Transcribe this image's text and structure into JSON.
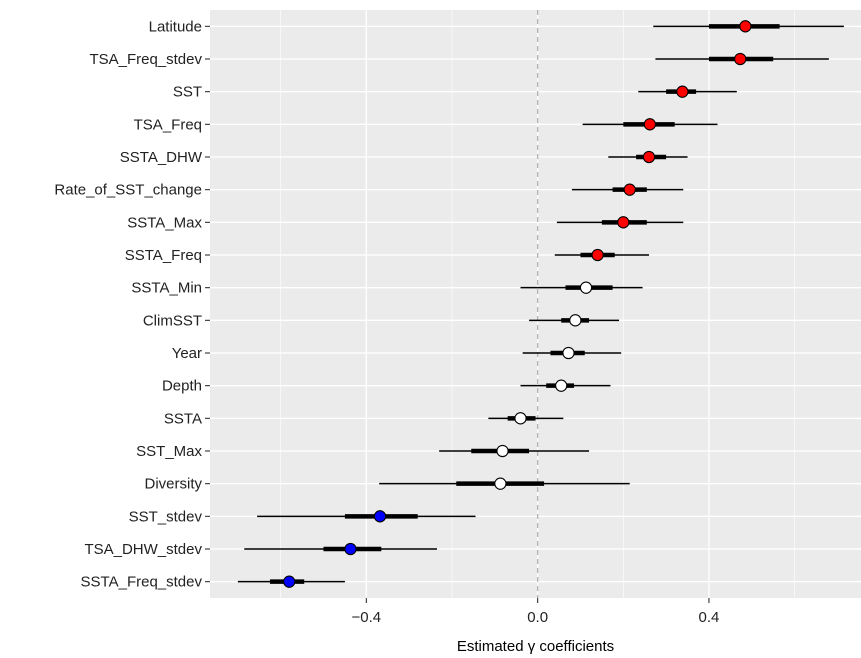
{
  "chart_data": {
    "type": "scatter",
    "subtype": "coefficient-interval-plot",
    "title": "",
    "xlabel": "Estimated γ coefficients",
    "ylabel": "",
    "xlim": [
      -0.765,
      0.755
    ],
    "xticks": [
      -0.4,
      0.0,
      0.4
    ],
    "xtick_labels": [
      "−0.4",
      "0.0",
      "0.4"
    ],
    "reference_line_x": 0.0,
    "grid": true,
    "legend": "none",
    "colors": {
      "panel_background": "#EBEBEB",
      "grid_line": "#FFFFFF",
      "reference_line": "#B3B3B3",
      "interval": "#000000",
      "positive": "#FF0000",
      "neutral": "#FFFFFF",
      "negative": "#0000FF"
    },
    "series": [
      {
        "label": "Latitude",
        "estimate": 0.485,
        "inner": [
          0.4,
          0.565
        ],
        "outer": [
          0.27,
          0.715
        ],
        "effect": "positive"
      },
      {
        "label": "TSA_Freq_stdev",
        "estimate": 0.473,
        "inner": [
          0.4,
          0.55
        ],
        "outer": [
          0.275,
          0.68
        ],
        "effect": "positive"
      },
      {
        "label": "SST",
        "estimate": 0.338,
        "inner": [
          0.3,
          0.37
        ],
        "outer": [
          0.235,
          0.465
        ],
        "effect": "positive"
      },
      {
        "label": "TSA_Freq",
        "estimate": 0.262,
        "inner": [
          0.2,
          0.32
        ],
        "outer": [
          0.105,
          0.42
        ],
        "effect": "positive"
      },
      {
        "label": "SSTA_DHW",
        "estimate": 0.26,
        "inner": [
          0.23,
          0.3
        ],
        "outer": [
          0.165,
          0.35
        ],
        "effect": "positive"
      },
      {
        "label": "Rate_of_SST_change",
        "estimate": 0.215,
        "inner": [
          0.175,
          0.255
        ],
        "outer": [
          0.08,
          0.34
        ],
        "effect": "positive"
      },
      {
        "label": "SSTA_Max",
        "estimate": 0.2,
        "inner": [
          0.15,
          0.255
        ],
        "outer": [
          0.045,
          0.34
        ],
        "effect": "positive"
      },
      {
        "label": "SSTA_Freq",
        "estimate": 0.14,
        "inner": [
          0.1,
          0.18
        ],
        "outer": [
          0.04,
          0.26
        ],
        "effect": "positive"
      },
      {
        "label": "SSTA_Min",
        "estimate": 0.113,
        "inner": [
          0.065,
          0.175
        ],
        "outer": [
          -0.04,
          0.245
        ],
        "effect": "neutral"
      },
      {
        "label": "ClimSST",
        "estimate": 0.088,
        "inner": [
          0.055,
          0.12
        ],
        "outer": [
          -0.02,
          0.19
        ],
        "effect": "neutral"
      },
      {
        "label": "Year",
        "estimate": 0.072,
        "inner": [
          0.03,
          0.11
        ],
        "outer": [
          -0.035,
          0.195
        ],
        "effect": "neutral"
      },
      {
        "label": "Depth",
        "estimate": 0.055,
        "inner": [
          0.02,
          0.085
        ],
        "outer": [
          -0.04,
          0.17
        ],
        "effect": "neutral"
      },
      {
        "label": "SSTA",
        "estimate": -0.04,
        "inner": [
          -0.07,
          -0.005
        ],
        "outer": [
          -0.115,
          0.06
        ],
        "effect": "neutral"
      },
      {
        "label": "SST_Max",
        "estimate": -0.082,
        "inner": [
          -0.155,
          -0.02
        ],
        "outer": [
          -0.23,
          0.12
        ],
        "effect": "neutral"
      },
      {
        "label": "Diversity",
        "estimate": -0.087,
        "inner": [
          -0.19,
          0.015
        ],
        "outer": [
          -0.37,
          0.215
        ],
        "effect": "neutral"
      },
      {
        "label": "SST_stdev",
        "estimate": -0.368,
        "inner": [
          -0.45,
          -0.28
        ],
        "outer": [
          -0.655,
          -0.145
        ],
        "effect": "negative"
      },
      {
        "label": "TSA_DHW_stdev",
        "estimate": -0.437,
        "inner": [
          -0.5,
          -0.365
        ],
        "outer": [
          -0.685,
          -0.235
        ],
        "effect": "negative"
      },
      {
        "label": "SSTA_Freq_stdev",
        "estimate": -0.58,
        "inner": [
          -0.625,
          -0.545
        ],
        "outer": [
          -0.7,
          -0.45
        ],
        "effect": "negative"
      }
    ]
  }
}
